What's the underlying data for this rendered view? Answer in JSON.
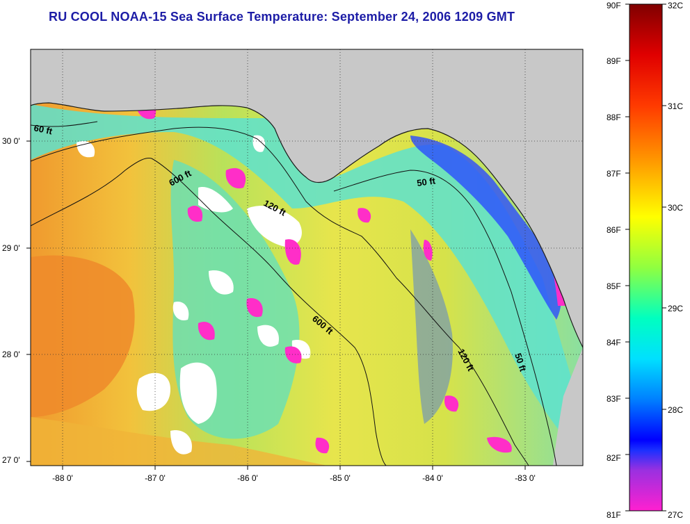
{
  "title": "RU COOL  NOAA-15  Sea Surface Temperature:  September 24, 2006 1209 GMT",
  "axes": {
    "lat_labels": [
      "30 0'",
      "29 0'",
      "28 0'",
      "27 0'"
    ],
    "lon_labels": [
      "-88 0'",
      "-87 0'",
      "-86 0'",
      "-85 0'",
      "-84 0'",
      "-83 0'"
    ]
  },
  "contours": {
    "c60_left": "60 ft",
    "c600_top": "600 ft",
    "c120_top": "120 ft",
    "c50_top": "50 ft",
    "c600_mid": "600 ft",
    "c120_right": "120 ft",
    "c50_right": "50 ft"
  },
  "colorbar": {
    "fahrenheit": [
      "90F",
      "89F",
      "88F",
      "87F",
      "86F",
      "85F",
      "84F",
      "83F",
      "82F",
      "81F"
    ],
    "celsius": [
      "32C",
      "31C",
      "30C",
      "29C",
      "28C",
      "27C"
    ]
  },
  "colors": {
    "title": "#1c1ca6",
    "land": "#c8c8c8",
    "cloud": "#ffffff",
    "sst_warm": "#f08c28",
    "sst_mid": "#e6e650",
    "sst_cool": "#50e6d2",
    "sst_cold": "#2040ff",
    "sst_min": "#ff28c8"
  }
}
